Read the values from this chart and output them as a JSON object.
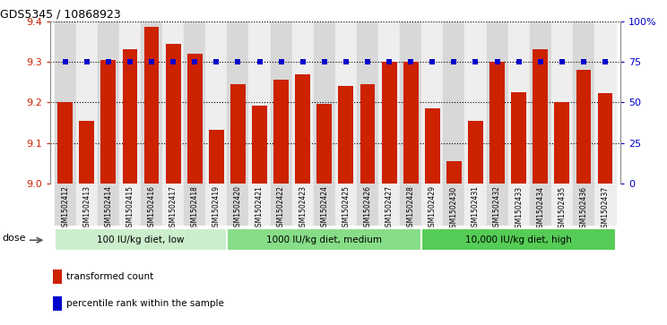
{
  "title": "GDS5345 / 10868923",
  "samples": [
    "GSM1502412",
    "GSM1502413",
    "GSM1502414",
    "GSM1502415",
    "GSM1502416",
    "GSM1502417",
    "GSM1502418",
    "GSM1502419",
    "GSM1502420",
    "GSM1502421",
    "GSM1502422",
    "GSM1502423",
    "GSM1502424",
    "GSM1502425",
    "GSM1502426",
    "GSM1502427",
    "GSM1502428",
    "GSM1502429",
    "GSM1502430",
    "GSM1502431",
    "GSM1502432",
    "GSM1502433",
    "GSM1502434",
    "GSM1502435",
    "GSM1502436",
    "GSM1502437"
  ],
  "bar_values": [
    9.2,
    9.155,
    9.305,
    9.33,
    9.385,
    9.345,
    9.32,
    9.133,
    9.245,
    9.193,
    9.255,
    9.27,
    9.197,
    9.24,
    9.245,
    9.3,
    9.3,
    9.185,
    9.055,
    9.155,
    9.3,
    9.225,
    9.33,
    9.2,
    9.28,
    9.222
  ],
  "percentile_values": [
    75,
    75,
    75,
    75,
    75,
    75,
    75,
    75,
    75,
    75,
    75,
    75,
    75,
    75,
    75,
    75,
    75,
    75,
    75,
    75,
    75,
    75,
    75,
    75,
    75,
    75
  ],
  "bar_color": "#cc2200",
  "dot_color": "#0000cc",
  "ylim_left": [
    9.0,
    9.4
  ],
  "ylim_right": [
    0,
    100
  ],
  "yticks_left": [
    9.0,
    9.1,
    9.2,
    9.3,
    9.4
  ],
  "yticks_right": [
    0,
    25,
    50,
    75,
    100
  ],
  "ytick_labels_right": [
    "0",
    "25",
    "50",
    "75",
    "100%"
  ],
  "groups": [
    {
      "label": "100 IU/kg diet, low",
      "start": 0,
      "end": 8
    },
    {
      "label": "1000 IU/kg diet, medium",
      "start": 8,
      "end": 17
    },
    {
      "label": "10,000 IU/kg diet, high",
      "start": 17,
      "end": 26
    }
  ],
  "group_colors": [
    "#cceecc",
    "#88dd88",
    "#55cc55"
  ],
  "dose_label": "dose",
  "legend_items": [
    {
      "color": "#cc2200",
      "label": "transformed count"
    },
    {
      "color": "#0000cc",
      "label": "percentile rank within the sample"
    }
  ],
  "col_bg_even": "#d8d8d8",
  "col_bg_odd": "#eeeeee",
  "background_color": "#ffffff"
}
